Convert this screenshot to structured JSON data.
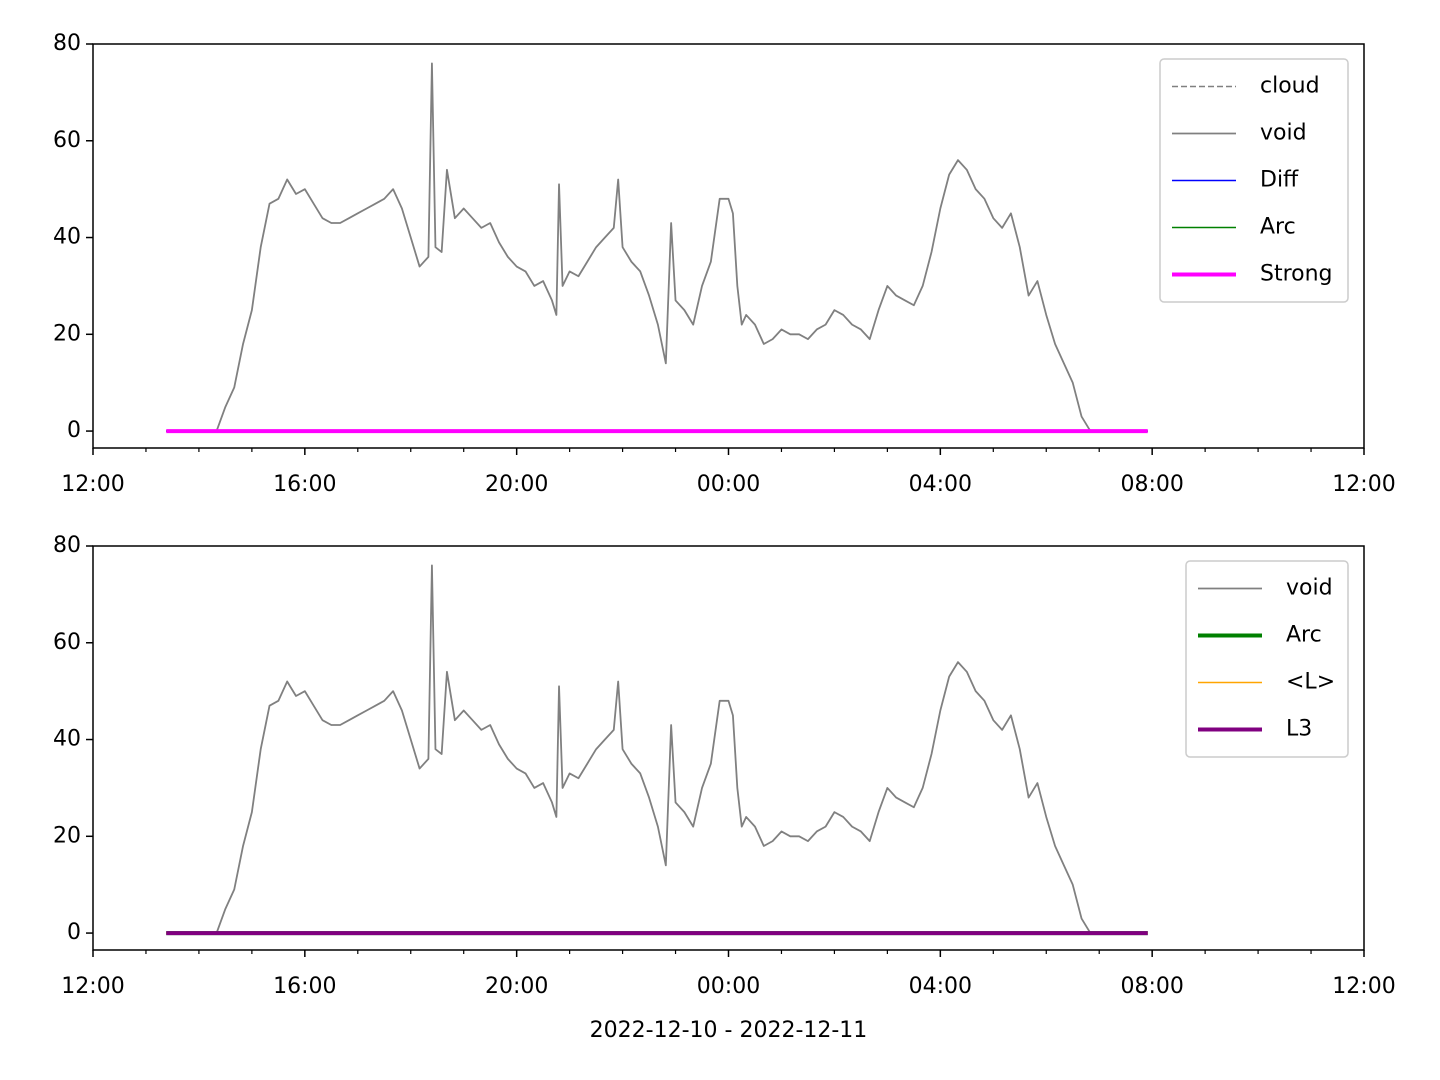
{
  "chart_data": [
    {
      "type": "line",
      "xlim": [
        "2022-12-10 12:00",
        "2022-12-11 12:00"
      ],
      "xticks": [
        {
          "value": "2022-12-10 12:00",
          "label": "12:00"
        },
        {
          "value": "2022-12-10 16:00",
          "label": "16:00"
        },
        {
          "value": "2022-12-10 20:00",
          "label": "20:00"
        },
        {
          "value": "2022-12-11 00:00",
          "label": "00:00"
        },
        {
          "value": "2022-12-11 04:00",
          "label": "04:00"
        },
        {
          "value": "2022-12-11 08:00",
          "label": "08:00"
        },
        {
          "value": "2022-12-11 12:00",
          "label": "12:00"
        }
      ],
      "xminorticks": [
        "2022-12-10 13:00",
        "2022-12-10 14:00",
        "2022-12-10 15:00",
        "2022-12-10 17:00",
        "2022-12-10 18:00",
        "2022-12-10 19:00",
        "2022-12-10 21:00",
        "2022-12-10 22:00",
        "2022-12-10 23:00",
        "2022-12-11 01:00",
        "2022-12-11 02:00",
        "2022-12-11 03:00",
        "2022-12-11 05:00",
        "2022-12-11 06:00",
        "2022-12-11 07:00",
        "2022-12-11 09:00",
        "2022-12-11 10:00",
        "2022-12-11 11:00"
      ],
      "ylim": [
        -3.5,
        80
      ],
      "yticks": [
        0,
        20,
        40,
        60,
        80
      ],
      "legend": "upper right",
      "series": [
        {
          "name": "cloud",
          "color": "#808080",
          "linestyle": "dashed",
          "linewidth": 1.5,
          "x": [
            "2022-12-10 13:23",
            "2022-12-11 07:55"
          ],
          "values": [
            0,
            0
          ]
        },
        {
          "name": "void",
          "color": "#808080",
          "linestyle": "solid",
          "linewidth": 1.8,
          "x": [
            "2022-12-10 13:23",
            "2022-12-10 14:20",
            "2022-12-10 14:30",
            "2022-12-10 14:40",
            "2022-12-10 14:50",
            "2022-12-10 15:00",
            "2022-12-10 15:10",
            "2022-12-10 15:20",
            "2022-12-10 15:30",
            "2022-12-10 15:40",
            "2022-12-10 15:50",
            "2022-12-10 16:00",
            "2022-12-10 16:10",
            "2022-12-10 16:20",
            "2022-12-10 16:30",
            "2022-12-10 16:40",
            "2022-12-10 16:50",
            "2022-12-10 17:00",
            "2022-12-10 17:10",
            "2022-12-10 17:20",
            "2022-12-10 17:30",
            "2022-12-10 17:40",
            "2022-12-10 17:50",
            "2022-12-10 18:00",
            "2022-12-10 18:10",
            "2022-12-10 18:20",
            "2022-12-10 18:24",
            "2022-12-10 18:28",
            "2022-12-10 18:35",
            "2022-12-10 18:41",
            "2022-12-10 18:50",
            "2022-12-10 19:00",
            "2022-12-10 19:10",
            "2022-12-10 19:20",
            "2022-12-10 19:30",
            "2022-12-10 19:40",
            "2022-12-10 19:50",
            "2022-12-10 20:00",
            "2022-12-10 20:10",
            "2022-12-10 20:20",
            "2022-12-10 20:30",
            "2022-12-10 20:40",
            "2022-12-10 20:45",
            "2022-12-10 20:48",
            "2022-12-10 20:52",
            "2022-12-10 21:00",
            "2022-12-10 21:10",
            "2022-12-10 21:20",
            "2022-12-10 21:30",
            "2022-12-10 21:40",
            "2022-12-10 21:50",
            "2022-12-10 21:55",
            "2022-12-10 22:00",
            "2022-12-10 22:10",
            "2022-12-10 22:20",
            "2022-12-10 22:30",
            "2022-12-10 22:40",
            "2022-12-10 22:49",
            "2022-12-10 22:55",
            "2022-12-10 23:00",
            "2022-12-10 23:10",
            "2022-12-10 23:20",
            "2022-12-10 23:30",
            "2022-12-10 23:40",
            "2022-12-10 23:50",
            "2022-12-11 00:00",
            "2022-12-11 00:05",
            "2022-12-11 00:10",
            "2022-12-11 00:15",
            "2022-12-11 00:20",
            "2022-12-11 00:30",
            "2022-12-11 00:40",
            "2022-12-11 00:50",
            "2022-12-11 01:00",
            "2022-12-11 01:10",
            "2022-12-11 01:20",
            "2022-12-11 01:30",
            "2022-12-11 01:40",
            "2022-12-11 01:50",
            "2022-12-11 02:00",
            "2022-12-11 02:10",
            "2022-12-11 02:20",
            "2022-12-11 02:30",
            "2022-12-11 02:40",
            "2022-12-11 02:50",
            "2022-12-11 03:00",
            "2022-12-11 03:10",
            "2022-12-11 03:20",
            "2022-12-11 03:30",
            "2022-12-11 03:40",
            "2022-12-11 03:50",
            "2022-12-11 04:00",
            "2022-12-11 04:10",
            "2022-12-11 04:20",
            "2022-12-11 04:30",
            "2022-12-11 04:40",
            "2022-12-11 04:50",
            "2022-12-11 05:00",
            "2022-12-11 05:10",
            "2022-12-11 05:20",
            "2022-12-11 05:30",
            "2022-12-11 05:40",
            "2022-12-11 05:50",
            "2022-12-11 06:00",
            "2022-12-11 06:10",
            "2022-12-11 06:20",
            "2022-12-11 06:30",
            "2022-12-11 06:40",
            "2022-12-11 06:50"
          ],
          "values": [
            0,
            0,
            5,
            9,
            18,
            25,
            38,
            47,
            48,
            52,
            49,
            50,
            47,
            44,
            43,
            43,
            44,
            45,
            46,
            47,
            48,
            50,
            46,
            40,
            34,
            36,
            76,
            38,
            37,
            54,
            44,
            46,
            44,
            42,
            43,
            39,
            36,
            34,
            33,
            30,
            31,
            27,
            24,
            51,
            30,
            33,
            32,
            35,
            38,
            40,
            42,
            52,
            38,
            35,
            33,
            28,
            22,
            14,
            43,
            27,
            25,
            22,
            30,
            35,
            48,
            48,
            45,
            30,
            22,
            24,
            22,
            18,
            19,
            21,
            20,
            20,
            19,
            21,
            22,
            25,
            24,
            22,
            21,
            19,
            25,
            30,
            28,
            27,
            26,
            30,
            37,
            46,
            53,
            56,
            54,
            50,
            48,
            44,
            42,
            45,
            38,
            28,
            31,
            24,
            18,
            14,
            10,
            3,
            0
          ]
        },
        {
          "name": "Diff",
          "color": "#0000ff",
          "linestyle": "solid",
          "linewidth": 1.5,
          "x": [
            "2022-12-10 13:23",
            "2022-12-11 07:55"
          ],
          "values": [
            0,
            0
          ]
        },
        {
          "name": "Arc",
          "color": "#008000",
          "linestyle": "solid",
          "linewidth": 1.5,
          "x": [
            "2022-12-10 13:23",
            "2022-12-11 07:55"
          ],
          "values": [
            0,
            0
          ]
        },
        {
          "name": "Strong",
          "color": "#ff00ff",
          "linestyle": "solid",
          "linewidth": 4,
          "x": [
            "2022-12-10 13:23",
            "2022-12-11 07:55"
          ],
          "values": [
            0,
            0
          ]
        }
      ]
    },
    {
      "type": "line",
      "xlim": [
        "2022-12-10 12:00",
        "2022-12-11 12:00"
      ],
      "xticks": [
        {
          "value": "2022-12-10 12:00",
          "label": "12:00"
        },
        {
          "value": "2022-12-10 16:00",
          "label": "16:00"
        },
        {
          "value": "2022-12-10 20:00",
          "label": "20:00"
        },
        {
          "value": "2022-12-11 00:00",
          "label": "00:00"
        },
        {
          "value": "2022-12-11 04:00",
          "label": "04:00"
        },
        {
          "value": "2022-12-11 08:00",
          "label": "08:00"
        },
        {
          "value": "2022-12-11 12:00",
          "label": "12:00"
        }
      ],
      "xminorticks": [
        "2022-12-10 13:00",
        "2022-12-10 14:00",
        "2022-12-10 15:00",
        "2022-12-10 17:00",
        "2022-12-10 18:00",
        "2022-12-10 19:00",
        "2022-12-10 21:00",
        "2022-12-10 22:00",
        "2022-12-10 23:00",
        "2022-12-11 01:00",
        "2022-12-11 02:00",
        "2022-12-11 03:00",
        "2022-12-11 05:00",
        "2022-12-11 06:00",
        "2022-12-11 07:00",
        "2022-12-11 09:00",
        "2022-12-11 10:00",
        "2022-12-11 11:00"
      ],
      "ylim": [
        -3.5,
        80
      ],
      "yticks": [
        0,
        20,
        40,
        60,
        80
      ],
      "xlabel": "2022-12-10 - 2022-12-11",
      "legend": "upper right",
      "series": [
        {
          "name": "void",
          "color": "#808080",
          "linestyle": "solid",
          "linewidth": 1.8,
          "x": [
            "2022-12-10 13:23",
            "2022-12-10 14:20",
            "2022-12-10 14:30",
            "2022-12-10 14:40",
            "2022-12-10 14:50",
            "2022-12-10 15:00",
            "2022-12-10 15:10",
            "2022-12-10 15:20",
            "2022-12-10 15:30",
            "2022-12-10 15:40",
            "2022-12-10 15:50",
            "2022-12-10 16:00",
            "2022-12-10 16:10",
            "2022-12-10 16:20",
            "2022-12-10 16:30",
            "2022-12-10 16:40",
            "2022-12-10 16:50",
            "2022-12-10 17:00",
            "2022-12-10 17:10",
            "2022-12-10 17:20",
            "2022-12-10 17:30",
            "2022-12-10 17:40",
            "2022-12-10 17:50",
            "2022-12-10 18:00",
            "2022-12-10 18:10",
            "2022-12-10 18:20",
            "2022-12-10 18:24",
            "2022-12-10 18:28",
            "2022-12-10 18:35",
            "2022-12-10 18:41",
            "2022-12-10 18:50",
            "2022-12-10 19:00",
            "2022-12-10 19:10",
            "2022-12-10 19:20",
            "2022-12-10 19:30",
            "2022-12-10 19:40",
            "2022-12-10 19:50",
            "2022-12-10 20:00",
            "2022-12-10 20:10",
            "2022-12-10 20:20",
            "2022-12-10 20:30",
            "2022-12-10 20:40",
            "2022-12-10 20:45",
            "2022-12-10 20:48",
            "2022-12-10 20:52",
            "2022-12-10 21:00",
            "2022-12-10 21:10",
            "2022-12-10 21:20",
            "2022-12-10 21:30",
            "2022-12-10 21:40",
            "2022-12-10 21:50",
            "2022-12-10 21:55",
            "2022-12-10 22:00",
            "2022-12-10 22:10",
            "2022-12-10 22:20",
            "2022-12-10 22:30",
            "2022-12-10 22:40",
            "2022-12-10 22:49",
            "2022-12-10 22:55",
            "2022-12-10 23:00",
            "2022-12-10 23:10",
            "2022-12-10 23:20",
            "2022-12-10 23:30",
            "2022-12-10 23:40",
            "2022-12-10 23:50",
            "2022-12-11 00:00",
            "2022-12-11 00:05",
            "2022-12-11 00:10",
            "2022-12-11 00:15",
            "2022-12-11 00:20",
            "2022-12-11 00:30",
            "2022-12-11 00:40",
            "2022-12-11 00:50",
            "2022-12-11 01:00",
            "2022-12-11 01:10",
            "2022-12-11 01:20",
            "2022-12-11 01:30",
            "2022-12-11 01:40",
            "2022-12-11 01:50",
            "2022-12-11 02:00",
            "2022-12-11 02:10",
            "2022-12-11 02:20",
            "2022-12-11 02:30",
            "2022-12-11 02:40",
            "2022-12-11 02:50",
            "2022-12-11 03:00",
            "2022-12-11 03:10",
            "2022-12-11 03:20",
            "2022-12-11 03:30",
            "2022-12-11 03:40",
            "2022-12-11 03:50",
            "2022-12-11 04:00",
            "2022-12-11 04:10",
            "2022-12-11 04:20",
            "2022-12-11 04:30",
            "2022-12-11 04:40",
            "2022-12-11 04:50",
            "2022-12-11 05:00",
            "2022-12-11 05:10",
            "2022-12-11 05:20",
            "2022-12-11 05:30",
            "2022-12-11 05:40",
            "2022-12-11 05:50",
            "2022-12-11 06:00",
            "2022-12-11 06:10",
            "2022-12-11 06:20",
            "2022-12-11 06:30",
            "2022-12-11 06:40",
            "2022-12-11 06:50"
          ],
          "values": [
            0,
            0,
            5,
            9,
            18,
            25,
            38,
            47,
            48,
            52,
            49,
            50,
            47,
            44,
            43,
            43,
            44,
            45,
            46,
            47,
            48,
            50,
            46,
            40,
            34,
            36,
            76,
            38,
            37,
            54,
            44,
            46,
            44,
            42,
            43,
            39,
            36,
            34,
            33,
            30,
            31,
            27,
            24,
            51,
            30,
            33,
            32,
            35,
            38,
            40,
            42,
            52,
            38,
            35,
            33,
            28,
            22,
            14,
            43,
            27,
            25,
            22,
            30,
            35,
            48,
            48,
            45,
            30,
            22,
            24,
            22,
            18,
            19,
            21,
            20,
            20,
            19,
            21,
            22,
            25,
            24,
            22,
            21,
            19,
            25,
            30,
            28,
            27,
            26,
            30,
            37,
            46,
            53,
            56,
            54,
            50,
            48,
            44,
            42,
            45,
            38,
            28,
            31,
            24,
            18,
            14,
            10,
            3,
            0
          ]
        },
        {
          "name": "Arc",
          "color": "#008000",
          "linestyle": "solid",
          "linewidth": 4,
          "x": [
            "2022-12-10 13:23",
            "2022-12-11 07:55"
          ],
          "values": [
            0,
            0
          ]
        },
        {
          "name": "<L>",
          "color": "#ffa500",
          "linestyle": "solid",
          "linewidth": 1.5,
          "x": [
            "2022-12-10 13:23",
            "2022-12-11 07:55"
          ],
          "values": [
            0,
            0
          ]
        },
        {
          "name": "L3",
          "color": "#800080",
          "linestyle": "solid",
          "linewidth": 4,
          "x": [
            "2022-12-10 13:23",
            "2022-12-11 07:55"
          ],
          "values": [
            0,
            0
          ]
        }
      ]
    }
  ]
}
